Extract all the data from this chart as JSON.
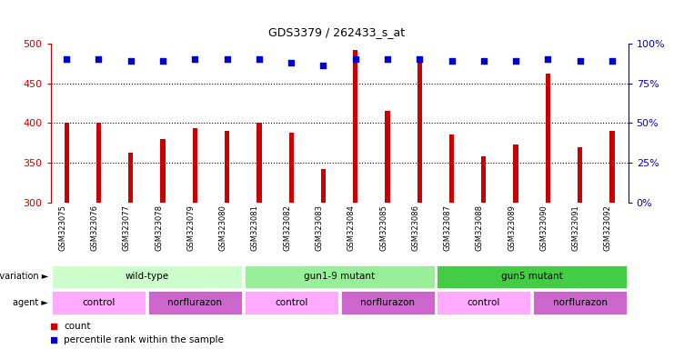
{
  "title": "GDS3379 / 262433_s_at",
  "samples": [
    "GSM323075",
    "GSM323076",
    "GSM323077",
    "GSM323078",
    "GSM323079",
    "GSM323080",
    "GSM323081",
    "GSM323082",
    "GSM323083",
    "GSM323084",
    "GSM323085",
    "GSM323086",
    "GSM323087",
    "GSM323088",
    "GSM323089",
    "GSM323090",
    "GSM323091",
    "GSM323092"
  ],
  "bar_values": [
    400,
    400,
    363,
    380,
    393,
    390,
    400,
    388,
    342,
    492,
    415,
    480,
    385,
    358,
    373,
    462,
    370,
    390
  ],
  "dot_y_left": [
    480,
    480,
    478,
    478,
    480,
    480,
    480,
    476,
    472,
    480,
    480,
    480,
    478,
    478,
    478,
    480,
    478,
    478
  ],
  "ymin": 300,
  "ymax": 500,
  "yticks_left": [
    300,
    350,
    400,
    450,
    500
  ],
  "yticks_right": [
    0,
    25,
    50,
    75,
    100
  ],
  "gridlines": [
    350,
    400,
    450
  ],
  "bar_color": "#cc0000",
  "dot_color": "#0000cc",
  "bar_width": 0.15,
  "tick_color_left": "#cc0000",
  "tick_color_right": "#0000cc",
  "sample_bg_color": "#d0d0d0",
  "genotype_groups": [
    {
      "label": "wild-type",
      "start": 0,
      "end": 6,
      "color": "#ccffcc"
    },
    {
      "label": "gun1-9 mutant",
      "start": 6,
      "end": 12,
      "color": "#99ee99"
    },
    {
      "label": "gun5 mutant",
      "start": 12,
      "end": 18,
      "color": "#44cc44"
    }
  ],
  "agent_groups": [
    {
      "label": "control",
      "start": 0,
      "end": 3,
      "color": "#ffaaff"
    },
    {
      "label": "norflurazon",
      "start": 3,
      "end": 6,
      "color": "#cc66cc"
    },
    {
      "label": "control",
      "start": 6,
      "end": 9,
      "color": "#ffaaff"
    },
    {
      "label": "norflurazon",
      "start": 9,
      "end": 12,
      "color": "#cc66cc"
    },
    {
      "label": "control",
      "start": 12,
      "end": 15,
      "color": "#ffaaff"
    },
    {
      "label": "norflurazon",
      "start": 15,
      "end": 18,
      "color": "#cc66cc"
    }
  ],
  "legend": [
    {
      "label": "count",
      "color": "#cc0000"
    },
    {
      "label": "percentile rank within the sample",
      "color": "#0000cc"
    }
  ]
}
